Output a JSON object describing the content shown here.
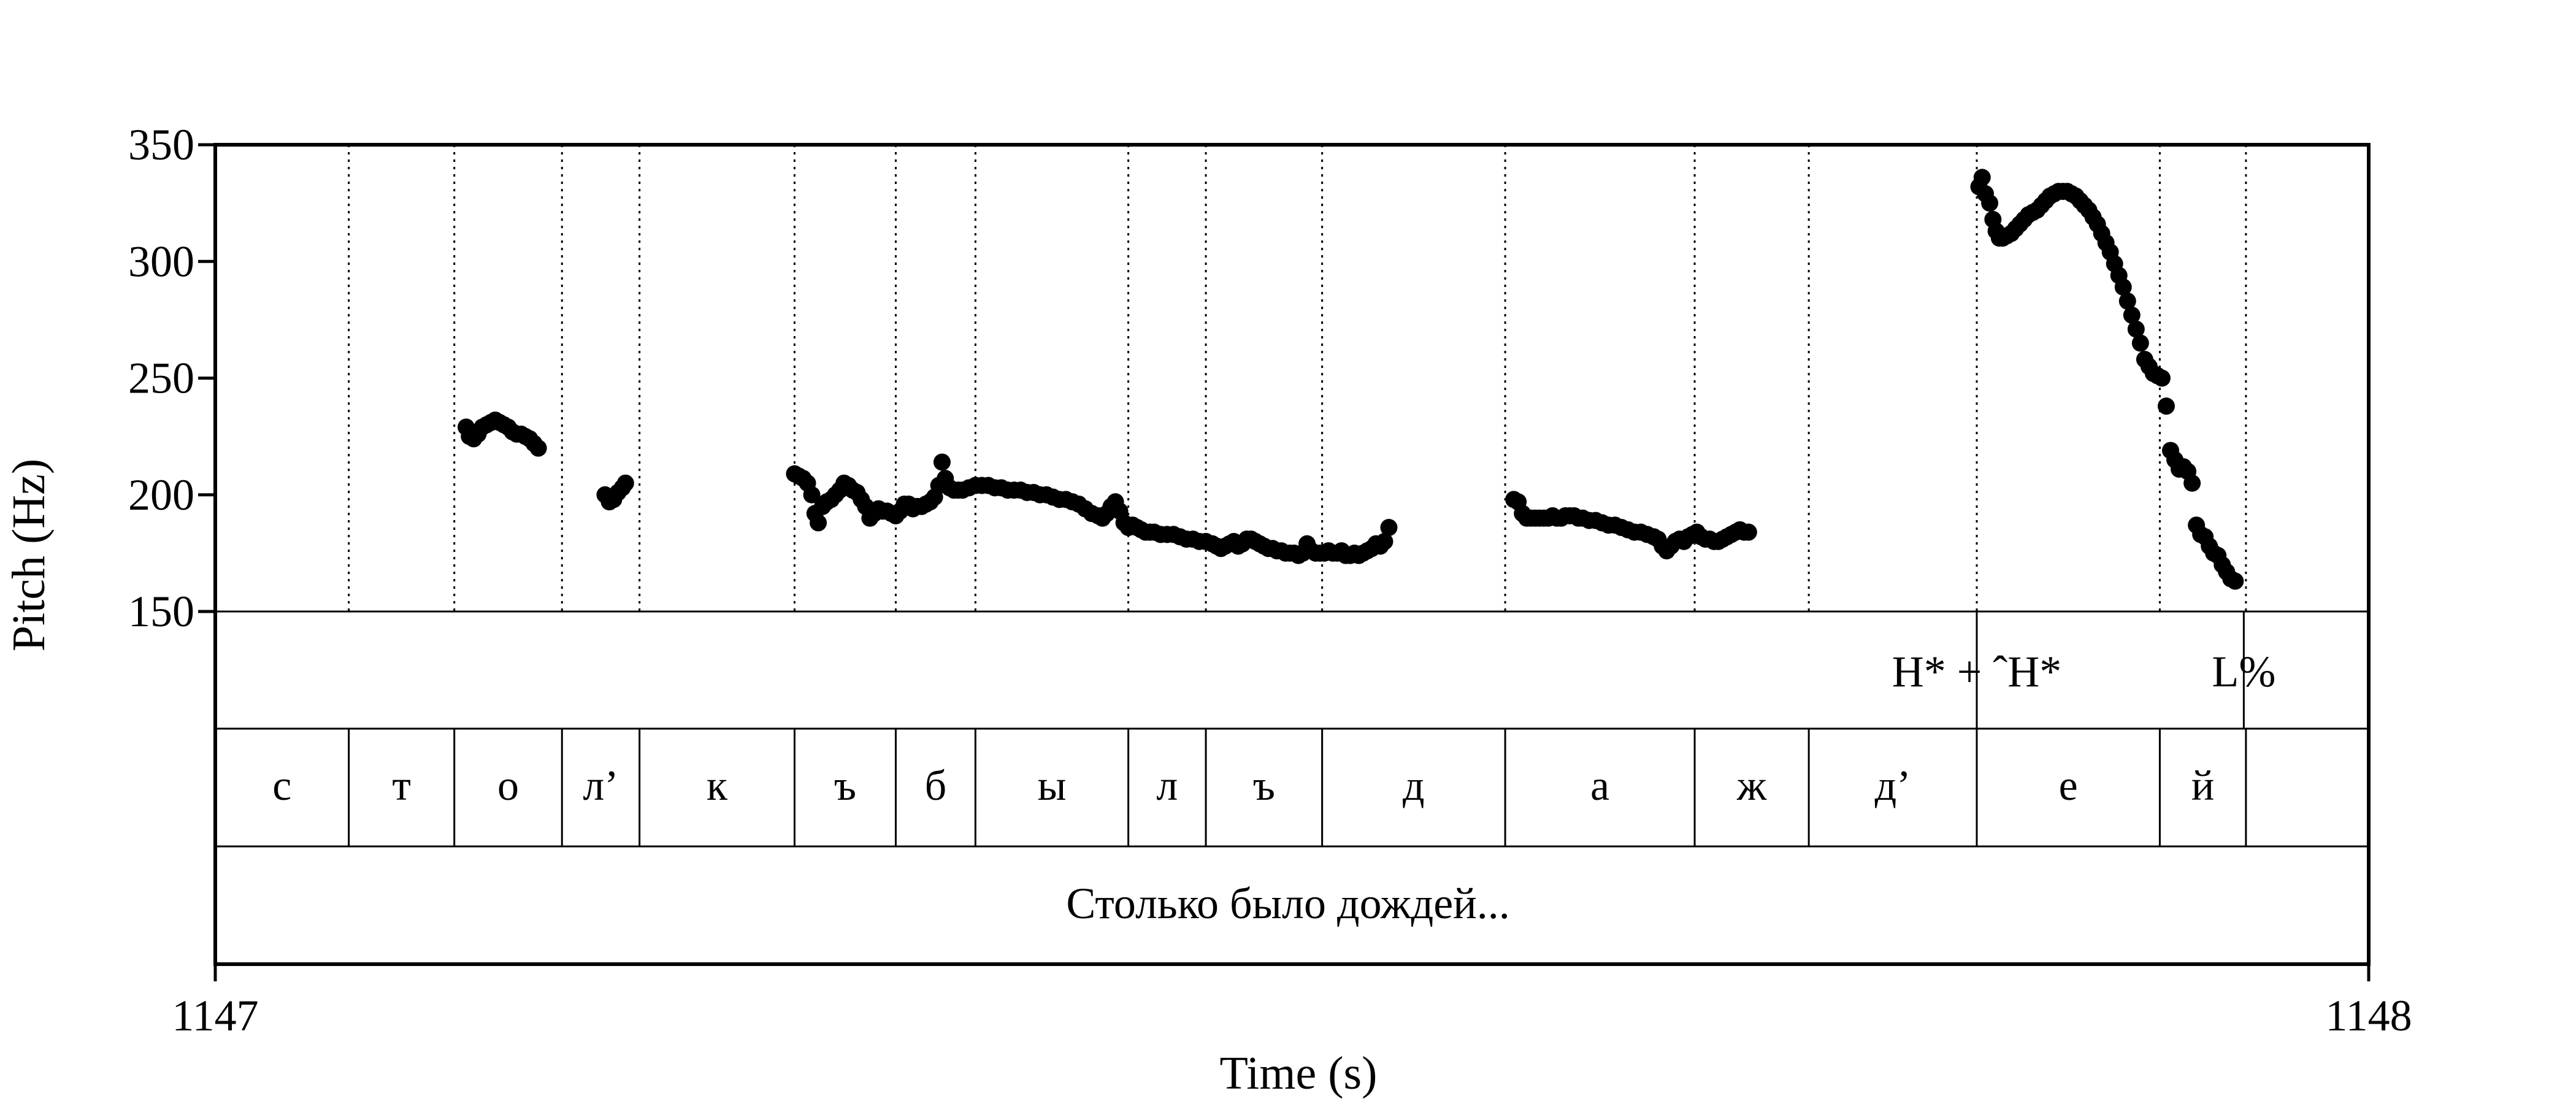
{
  "chart_data": {
    "type": "scatter",
    "xlabel": "Time (s)",
    "ylabel": "Pitch (Hz)",
    "xlim": [
      1147,
      1148
    ],
    "ylim": [
      150,
      350
    ],
    "x_ticks": [
      "1147",
      "1148"
    ],
    "y_ticks": [
      150,
      200,
      250,
      300,
      350
    ],
    "grid": false,
    "tiers": {
      "tones": [
        {
          "label": "H* + ˆH*",
          "time": 1147.818
        },
        {
          "label": "L%",
          "time": 1147.942
        }
      ],
      "segments": [
        {
          "label": "с",
          "start": 1147.0,
          "end": 1147.062
        },
        {
          "label": "т",
          "start": 1147.062,
          "end": 1147.111
        },
        {
          "label": "о",
          "start": 1147.111,
          "end": 1147.161
        },
        {
          "label": "л’",
          "start": 1147.161,
          "end": 1147.197
        },
        {
          "label": "к",
          "start": 1147.197,
          "end": 1147.269
        },
        {
          "label": "ъ",
          "start": 1147.269,
          "end": 1147.316
        },
        {
          "label": "б",
          "start": 1147.316,
          "end": 1147.353
        },
        {
          "label": "ы",
          "start": 1147.353,
          "end": 1147.424
        },
        {
          "label": "л",
          "start": 1147.424,
          "end": 1147.46
        },
        {
          "label": "ъ",
          "start": 1147.46,
          "end": 1147.514
        },
        {
          "label": "д",
          "start": 1147.514,
          "end": 1147.599
        },
        {
          "label": "а",
          "start": 1147.599,
          "end": 1147.687
        },
        {
          "label": "ж",
          "start": 1147.687,
          "end": 1147.74
        },
        {
          "label": "д’",
          "start": 1147.74,
          "end": 1147.818
        },
        {
          "label": "е",
          "start": 1147.818,
          "end": 1147.903
        },
        {
          "label": "й",
          "start": 1147.903,
          "end": 1147.943
        }
      ],
      "sentence": "Столько было дождей..."
    },
    "series": [
      {
        "points": [
          [
            1147.1165,
            229
          ],
          [
            1147.118,
            225
          ],
          [
            1147.12,
            224
          ],
          [
            1147.122,
            226
          ],
          [
            1147.124,
            229
          ],
          [
            1147.126,
            230
          ],
          [
            1147.128,
            231
          ],
          [
            1147.13,
            232
          ],
          [
            1147.132,
            231
          ],
          [
            1147.134,
            230
          ],
          [
            1147.136,
            229
          ],
          [
            1147.138,
            227
          ],
          [
            1147.14,
            226
          ],
          [
            1147.142,
            226
          ],
          [
            1147.144,
            225
          ],
          [
            1147.146,
            224
          ],
          [
            1147.148,
            222
          ],
          [
            1147.15,
            220
          ],
          [
            1147.181,
            200
          ],
          [
            1147.183,
            197
          ],
          [
            1147.185,
            198
          ],
          [
            1147.187,
            201
          ],
          [
            1147.189,
            203
          ],
          [
            1147.1905,
            205
          ],
          [
            1147.269,
            209
          ],
          [
            1147.271,
            208
          ],
          [
            1147.273,
            207
          ],
          [
            1147.275,
            205
          ],
          [
            1147.277,
            200
          ],
          [
            1147.2785,
            192
          ],
          [
            1147.28,
            188
          ],
          [
            1147.282,
            195
          ],
          [
            1147.284,
            197
          ],
          [
            1147.286,
            198
          ],
          [
            1147.288,
            200
          ],
          [
            1147.29,
            202
          ],
          [
            1147.292,
            205
          ],
          [
            1147.294,
            204
          ],
          [
            1147.296,
            202
          ],
          [
            1147.298,
            201
          ],
          [
            1147.3,
            198
          ],
          [
            1147.302,
            195
          ],
          [
            1147.304,
            190
          ],
          [
            1147.306,
            192
          ],
          [
            1147.308,
            194
          ],
          [
            1147.31,
            193
          ],
          [
            1147.312,
            193
          ],
          [
            1147.314,
            192
          ],
          [
            1147.316,
            191
          ],
          [
            1147.318,
            193
          ],
          [
            1147.32,
            196
          ],
          [
            1147.322,
            196
          ],
          [
            1147.324,
            194
          ],
          [
            1147.326,
            195
          ],
          [
            1147.328,
            195
          ],
          [
            1147.33,
            196
          ],
          [
            1147.332,
            197
          ],
          [
            1147.334,
            199
          ],
          [
            1147.336,
            204
          ],
          [
            1147.3375,
            214
          ],
          [
            1147.339,
            207
          ],
          [
            1147.341,
            203
          ],
          [
            1147.343,
            202
          ],
          [
            1147.345,
            202
          ],
          [
            1147.347,
            202
          ],
          [
            1147.35,
            203
          ],
          [
            1147.353,
            204
          ],
          [
            1147.356,
            204
          ],
          [
            1147.359,
            204
          ],
          [
            1147.362,
            203
          ],
          [
            1147.365,
            203
          ],
          [
            1147.368,
            202
          ],
          [
            1147.371,
            202
          ],
          [
            1147.374,
            202
          ],
          [
            1147.377,
            201
          ],
          [
            1147.38,
            201
          ],
          [
            1147.383,
            200
          ],
          [
            1147.386,
            200
          ],
          [
            1147.389,
            199
          ],
          [
            1147.392,
            198
          ],
          [
            1147.395,
            198
          ],
          [
            1147.398,
            197
          ],
          [
            1147.401,
            196
          ],
          [
            1147.404,
            194
          ],
          [
            1147.407,
            192
          ],
          [
            1147.41,
            191
          ],
          [
            1147.412,
            190
          ],
          [
            1147.414,
            192
          ],
          [
            1147.416,
            195
          ],
          [
            1147.418,
            197
          ],
          [
            1147.42,
            193
          ],
          [
            1147.422,
            188
          ],
          [
            1147.424,
            186
          ],
          [
            1147.426,
            187
          ],
          [
            1147.428,
            186
          ],
          [
            1147.43,
            185
          ],
          [
            1147.432,
            184
          ],
          [
            1147.434,
            184
          ],
          [
            1147.436,
            184
          ],
          [
            1147.439,
            183
          ],
          [
            1147.442,
            183
          ],
          [
            1147.445,
            183
          ],
          [
            1147.448,
            182
          ],
          [
            1147.451,
            181
          ],
          [
            1147.454,
            181
          ],
          [
            1147.457,
            180
          ],
          [
            1147.46,
            180
          ],
          [
            1147.463,
            179
          ],
          [
            1147.465,
            178
          ],
          [
            1147.467,
            177
          ],
          [
            1147.469,
            178
          ],
          [
            1147.471,
            179
          ],
          [
            1147.473,
            180
          ],
          [
            1147.475,
            178
          ],
          [
            1147.477,
            179
          ],
          [
            1147.479,
            181
          ],
          [
            1147.481,
            181
          ],
          [
            1147.483,
            180
          ],
          [
            1147.485,
            179
          ],
          [
            1147.487,
            178
          ],
          [
            1147.489,
            177
          ],
          [
            1147.491,
            177
          ],
          [
            1147.493,
            176
          ],
          [
            1147.495,
            176
          ],
          [
            1147.497,
            175
          ],
          [
            1147.499,
            175
          ],
          [
            1147.501,
            175
          ],
          [
            1147.503,
            174
          ],
          [
            1147.505,
            175
          ],
          [
            1147.507,
            179
          ],
          [
            1147.509,
            176
          ],
          [
            1147.511,
            175
          ],
          [
            1147.513,
            175
          ],
          [
            1147.515,
            175
          ],
          [
            1147.517,
            176
          ],
          [
            1147.519,
            175
          ],
          [
            1147.521,
            175
          ],
          [
            1147.523,
            176
          ],
          [
            1147.525,
            174
          ],
          [
            1147.527,
            174
          ],
          [
            1147.529,
            175
          ],
          [
            1147.531,
            174
          ],
          [
            1147.533,
            175
          ],
          [
            1147.535,
            176
          ],
          [
            1147.537,
            177
          ],
          [
            1147.539,
            179
          ],
          [
            1147.541,
            178
          ],
          [
            1147.543,
            180
          ],
          [
            1147.545,
            186
          ],
          [
            1147.603,
            198
          ],
          [
            1147.605,
            197
          ],
          [
            1147.607,
            192
          ],
          [
            1147.609,
            190
          ],
          [
            1147.611,
            190
          ],
          [
            1147.613,
            190
          ],
          [
            1147.615,
            190
          ],
          [
            1147.617,
            190
          ],
          [
            1147.619,
            190
          ],
          [
            1147.621,
            191
          ],
          [
            1147.623,
            190
          ],
          [
            1147.625,
            190
          ],
          [
            1147.627,
            191
          ],
          [
            1147.629,
            191
          ],
          [
            1147.631,
            191
          ],
          [
            1147.633,
            190
          ],
          [
            1147.635,
            190
          ],
          [
            1147.638,
            189
          ],
          [
            1147.641,
            189
          ],
          [
            1147.644,
            188
          ],
          [
            1147.647,
            187
          ],
          [
            1147.65,
            187
          ],
          [
            1147.653,
            186
          ],
          [
            1147.656,
            185
          ],
          [
            1147.659,
            184
          ],
          [
            1147.662,
            184
          ],
          [
            1147.665,
            183
          ],
          [
            1147.668,
            182
          ],
          [
            1147.67,
            181
          ],
          [
            1147.672,
            178
          ],
          [
            1147.674,
            176
          ],
          [
            1147.676,
            178
          ],
          [
            1147.678,
            180
          ],
          [
            1147.68,
            181
          ],
          [
            1147.682,
            180
          ],
          [
            1147.684,
            182
          ],
          [
            1147.686,
            183
          ],
          [
            1147.688,
            184
          ],
          [
            1147.69,
            182
          ],
          [
            1147.692,
            181
          ],
          [
            1147.694,
            181
          ],
          [
            1147.696,
            180
          ],
          [
            1147.698,
            180
          ],
          [
            1147.7,
            181
          ],
          [
            1147.702,
            182
          ],
          [
            1147.704,
            183
          ],
          [
            1147.706,
            184
          ],
          [
            1147.708,
            185
          ],
          [
            1147.71,
            184
          ],
          [
            1147.712,
            184
          ],
          [
            1147.819,
            332
          ],
          [
            1147.8205,
            336
          ],
          [
            1147.822,
            329
          ],
          [
            1147.824,
            325
          ],
          [
            1147.8255,
            318
          ],
          [
            1147.827,
            313
          ],
          [
            1147.8285,
            310
          ],
          [
            1147.83,
            310
          ],
          [
            1147.832,
            311
          ],
          [
            1147.834,
            312
          ],
          [
            1147.836,
            314
          ],
          [
            1147.838,
            316
          ],
          [
            1147.84,
            318
          ],
          [
            1147.842,
            320
          ],
          [
            1147.844,
            321
          ],
          [
            1147.846,
            322
          ],
          [
            1147.848,
            324
          ],
          [
            1147.85,
            326
          ],
          [
            1147.852,
            328
          ],
          [
            1147.854,
            329
          ],
          [
            1147.856,
            330
          ],
          [
            1147.858,
            330
          ],
          [
            1147.86,
            330
          ],
          [
            1147.862,
            329
          ],
          [
            1147.864,
            328
          ],
          [
            1147.866,
            326
          ],
          [
            1147.868,
            324
          ],
          [
            1147.87,
            322
          ],
          [
            1147.872,
            319
          ],
          [
            1147.874,
            316
          ],
          [
            1147.876,
            312
          ],
          [
            1147.878,
            308
          ],
          [
            1147.88,
            304
          ],
          [
            1147.882,
            299
          ],
          [
            1147.884,
            294
          ],
          [
            1147.886,
            289
          ],
          [
            1147.888,
            283
          ],
          [
            1147.89,
            277
          ],
          [
            1147.892,
            271
          ],
          [
            1147.894,
            265
          ],
          [
            1147.896,
            258
          ],
          [
            1147.898,
            255
          ],
          [
            1147.9,
            252
          ],
          [
            1147.902,
            251
          ],
          [
            1147.904,
            250
          ],
          [
            1147.906,
            238
          ],
          [
            1147.908,
            219
          ],
          [
            1147.91,
            215
          ],
          [
            1147.912,
            211
          ],
          [
            1147.914,
            212
          ],
          [
            1147.916,
            210
          ],
          [
            1147.918,
            205
          ],
          [
            1147.92,
            187
          ],
          [
            1147.922,
            183
          ],
          [
            1147.924,
            182
          ],
          [
            1147.926,
            178
          ],
          [
            1147.928,
            175
          ],
          [
            1147.93,
            174
          ],
          [
            1147.932,
            170
          ],
          [
            1147.934,
            167
          ],
          [
            1147.936,
            164
          ],
          [
            1147.938,
            163
          ]
        ]
      }
    ]
  }
}
